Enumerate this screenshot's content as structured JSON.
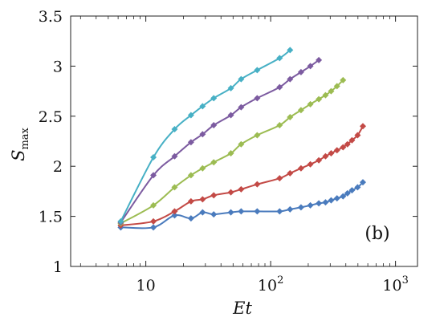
{
  "chart_data": {
    "type": "line",
    "title": "",
    "panel_label": "(b)",
    "xlabel": "Et",
    "ylabel_main": "S",
    "ylabel_sub": "max",
    "xscale": "log",
    "xlim": [
      2.5,
      1500
    ],
    "ylim": [
      1,
      3.5
    ],
    "grid": false,
    "legend": "none",
    "x_ticks": [
      {
        "value": 10,
        "base": "10",
        "exp": ""
      },
      {
        "value": 100,
        "base": "10",
        "exp": "2"
      },
      {
        "value": 1000,
        "base": "10",
        "exp": "3"
      }
    ],
    "y_ticks": [
      {
        "value": 1,
        "label": "1"
      },
      {
        "value": 1.5,
        "label": "1.5"
      },
      {
        "value": 2,
        "label": "2"
      },
      {
        "value": 2.5,
        "label": "2.5"
      },
      {
        "value": 3,
        "label": "3"
      },
      {
        "value": 3.5,
        "label": "3.5"
      }
    ],
    "series": [
      {
        "color": "#4a7bbd",
        "x": [
          6.3,
          11.5,
          17,
          23,
          28.5,
          35,
          48,
          58,
          78,
          118,
          143,
          175,
          208,
          243,
          275,
          305,
          340,
          380,
          412,
          448,
          497,
          548
        ],
        "y": [
          1.39,
          1.39,
          1.51,
          1.48,
          1.54,
          1.52,
          1.54,
          1.55,
          1.55,
          1.55,
          1.57,
          1.59,
          1.61,
          1.63,
          1.64,
          1.66,
          1.68,
          1.7,
          1.73,
          1.76,
          1.79,
          1.84
        ]
      },
      {
        "color": "#c34a46",
        "x": [
          6.3,
          11.5,
          17,
          23,
          28.5,
          35,
          48,
          58,
          78,
          118,
          143,
          175,
          208,
          243,
          275,
          305,
          340,
          380,
          412,
          448,
          497,
          548
        ],
        "y": [
          1.41,
          1.45,
          1.55,
          1.65,
          1.67,
          1.71,
          1.74,
          1.77,
          1.82,
          1.88,
          1.93,
          1.98,
          2.02,
          2.06,
          2.1,
          2.13,
          2.16,
          2.19,
          2.22,
          2.26,
          2.31,
          2.4
        ]
      },
      {
        "color": "#9cbc52",
        "x": [
          6.3,
          11.5,
          17,
          23,
          28.5,
          35,
          48,
          58,
          78,
          118,
          143,
          175,
          208,
          243,
          275,
          305,
          340,
          380
        ],
        "y": [
          1.43,
          1.61,
          1.79,
          1.91,
          1.98,
          2.04,
          2.13,
          2.22,
          2.31,
          2.41,
          2.49,
          2.56,
          2.62,
          2.67,
          2.71,
          2.75,
          2.8,
          2.86
        ]
      },
      {
        "color": "#7c5ba0",
        "x": [
          6.3,
          11.5,
          17,
          23,
          28.5,
          35,
          48,
          58,
          78,
          118,
          143,
          175,
          208,
          243
        ],
        "y": [
          1.44,
          1.91,
          2.1,
          2.24,
          2.32,
          2.41,
          2.51,
          2.59,
          2.68,
          2.79,
          2.87,
          2.94,
          3.0,
          3.06
        ]
      },
      {
        "color": "#47b0c5",
        "x": [
          6.3,
          11.5,
          17,
          23,
          28.5,
          35,
          48,
          58,
          78,
          118,
          143
        ],
        "y": [
          1.45,
          2.09,
          2.37,
          2.51,
          2.6,
          2.68,
          2.78,
          2.87,
          2.96,
          3.08,
          3.16
        ]
      }
    ]
  }
}
